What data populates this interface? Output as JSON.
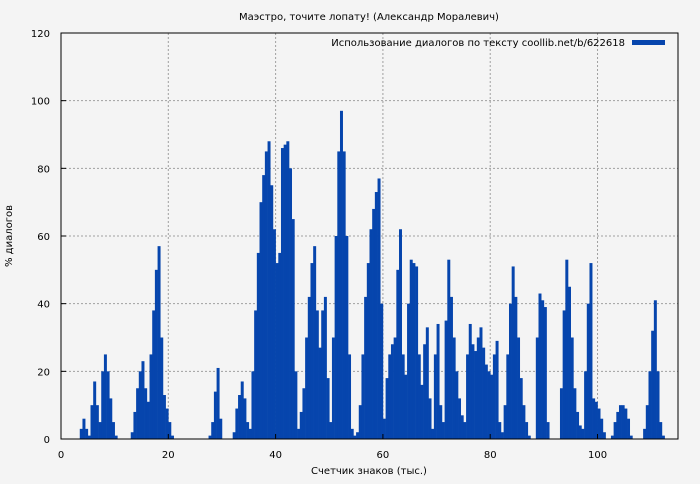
{
  "chart_data": {
    "type": "bar",
    "title": "Маэстро, точите лопату! (Александр Моралевич)",
    "xlabel": "Счетчик знаков (тыс.)",
    "ylabel": "% диалогов",
    "xlim": [
      0,
      115
    ],
    "ylim": [
      0,
      120
    ],
    "xticks": [
      0,
      20,
      40,
      60,
      80,
      100
    ],
    "yticks": [
      0,
      20,
      40,
      60,
      80,
      100,
      120
    ],
    "grid": true,
    "legend_position": "top-right",
    "colors": {
      "bars": "#0645ad",
      "background": "#f4f4f4",
      "grid": "#a0a0a0"
    },
    "series": [
      {
        "name": "Использование диалогов по тексту coollib.net/b/622618",
        "x": [
          0,
          0.5,
          1,
          1.5,
          2,
          2.5,
          3,
          3.5,
          4,
          4.5,
          5,
          5.5,
          6,
          6.5,
          7,
          7.5,
          8,
          8.5,
          9,
          9.5,
          10,
          10.5,
          11,
          11.5,
          12,
          12.5,
          13,
          13.5,
          14,
          14.5,
          15,
          15.5,
          16,
          16.5,
          17,
          17.5,
          18,
          18.5,
          19,
          19.5,
          20,
          20.5,
          21,
          21.5,
          22,
          22.5,
          23,
          23.5,
          24,
          24.5,
          25,
          25.5,
          26,
          26.5,
          27,
          27.5,
          28,
          28.5,
          29,
          29.5,
          30,
          30.5,
          31,
          31.5,
          32,
          32.5,
          33,
          33.5,
          34,
          34.5,
          35,
          35.5,
          36,
          36.5,
          37,
          37.5,
          38,
          38.5,
          39,
          39.5,
          40,
          40.5,
          41,
          41.5,
          42,
          42.5,
          43,
          43.5,
          44,
          44.5,
          45,
          45.5,
          46,
          46.5,
          47,
          47.5,
          48,
          48.5,
          49,
          49.5,
          50,
          50.5,
          51,
          51.5,
          52,
          52.5,
          53,
          53.5,
          54,
          54.5,
          55,
          55.5,
          56,
          56.5,
          57,
          57.5,
          58,
          58.5,
          59,
          59.5,
          60,
          60.5,
          61,
          61.5,
          62,
          62.5,
          63,
          63.5,
          64,
          64.5,
          65,
          65.5,
          66,
          66.5,
          67,
          67.5,
          68,
          68.5,
          69,
          69.5,
          70,
          70.5,
          71,
          71.5,
          72,
          72.5,
          73,
          73.5,
          74,
          74.5,
          75,
          75.5,
          76,
          76.5,
          77,
          77.5,
          78,
          78.5,
          79,
          79.5,
          80,
          80.5,
          81,
          81.5,
          82,
          82.5,
          83,
          83.5,
          84,
          84.5,
          85,
          85.5,
          86,
          86.5,
          87,
          87.5,
          88,
          88.5,
          89,
          89.5,
          90,
          90.5,
          91,
          91.5,
          92,
          92.5,
          93,
          93.5,
          94,
          94.5,
          95,
          95.5,
          96,
          96.5,
          97,
          97.5,
          98,
          98.5,
          99,
          99.5,
          100,
          100.5,
          101,
          101.5,
          102,
          102.5,
          103,
          103.5,
          104,
          104.5,
          105,
          105.5,
          106,
          106.5,
          107,
          107.5,
          108,
          108.5,
          109,
          109.5,
          110,
          110.5,
          111,
          111.5,
          112,
          112.5,
          113,
          113.5,
          114,
          114.5
        ],
        "y": [
          0,
          0,
          0,
          0,
          0,
          0,
          0,
          3,
          6,
          3,
          1,
          10,
          17,
          10,
          5,
          20,
          25,
          20,
          12,
          5,
          1,
          0,
          0,
          0,
          0,
          0,
          2,
          8,
          15,
          20,
          23,
          15,
          11,
          25,
          38,
          50,
          57,
          30,
          13,
          9,
          5,
          1,
          0,
          0,
          0,
          0,
          0,
          0,
          0,
          0,
          0,
          0,
          0,
          0,
          0,
          1,
          5,
          14,
          21,
          6,
          0,
          0,
          0,
          0,
          2,
          9,
          13,
          17,
          12,
          5,
          3,
          20,
          38,
          55,
          70,
          78,
          85,
          88,
          75,
          62,
          52,
          55,
          86,
          87,
          88,
          80,
          65,
          20,
          3,
          8,
          15,
          30,
          42,
          52,
          57,
          38,
          27,
          38,
          42,
          18,
          5,
          30,
          60,
          85,
          97,
          85,
          60,
          25,
          3,
          1,
          2,
          10,
          25,
          42,
          52,
          62,
          68,
          73,
          77,
          40,
          6,
          18,
          25,
          28,
          30,
          50,
          62,
          25,
          19,
          40,
          53,
          52,
          51,
          25,
          16,
          28,
          33,
          12,
          3,
          25,
          34,
          10,
          5,
          35,
          53,
          42,
          30,
          20,
          12,
          7,
          5,
          25,
          34,
          28,
          26,
          30,
          33,
          27,
          22,
          20,
          19,
          25,
          29,
          5,
          2,
          10,
          25,
          40,
          51,
          42,
          30,
          18,
          10,
          5,
          1,
          0,
          0,
          30,
          43,
          41,
          39,
          5,
          0,
          0,
          0,
          0,
          15,
          38,
          53,
          45,
          30,
          15,
          8,
          4,
          3,
          20,
          40,
          52,
          12,
          11,
          9,
          6,
          2,
          0,
          0,
          1,
          5,
          8,
          10,
          10,
          9,
          6,
          1,
          0,
          0,
          0,
          0,
          3,
          10,
          20,
          32,
          41,
          20,
          5,
          1,
          0,
          0,
          0,
          0,
          0
        ]
      }
    ]
  }
}
